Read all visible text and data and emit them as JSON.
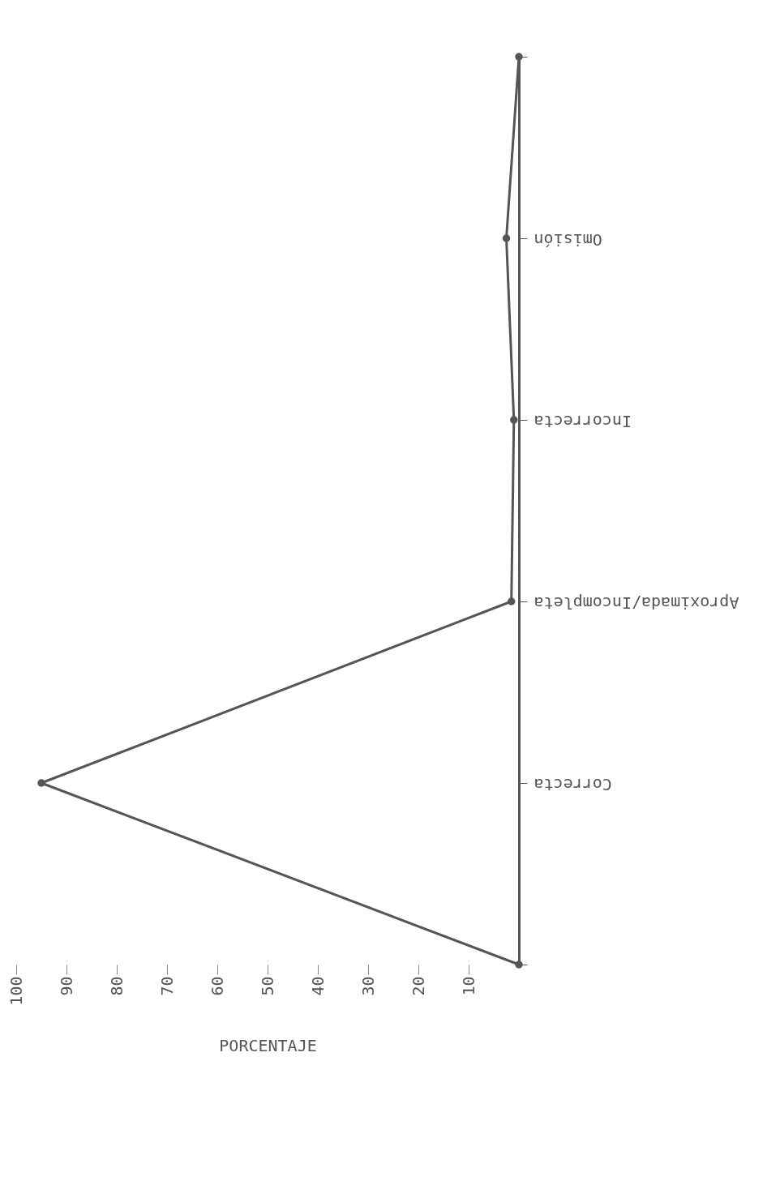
{
  "chart_data": {
    "type": "line",
    "orientation": "horizontal",
    "xlabel": "PORCENTAJE",
    "categories": [
      null,
      "Omisión",
      "Incorrecta",
      "Aproximada/Incompleta",
      "Correcta",
      null
    ],
    "series": [
      {
        "color": "#555555",
        "values": [
          0,
          2.5,
          1,
          1.5,
          95,
          0
        ]
      }
    ],
    "xlim": [
      100,
      0
    ],
    "xticks": [
      10,
      20,
      30,
      40,
      50,
      60,
      70,
      80,
      90,
      100
    ],
    "grid": false,
    "marker": "circle"
  }
}
